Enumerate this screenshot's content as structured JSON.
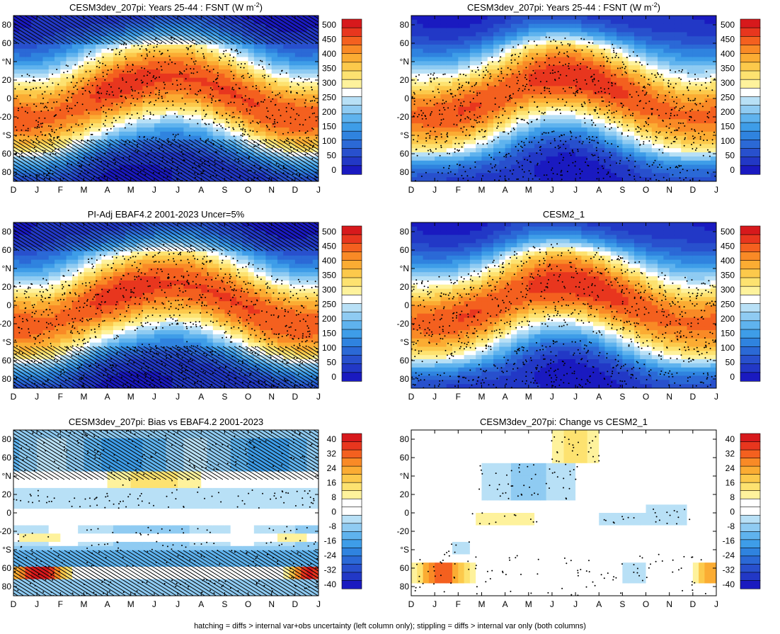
{
  "months": [
    "D",
    "J",
    "F",
    "M",
    "A",
    "M",
    "J",
    "J",
    "A",
    "S",
    "O",
    "N",
    "D",
    "J"
  ],
  "lat_ticks": [
    "80",
    "60",
    "°N",
    "20",
    "0",
    "-20",
    "°S",
    "60",
    "80"
  ],
  "lat_values": [
    80,
    60,
    40,
    20,
    0,
    -20,
    -40,
    -60,
    -80
  ],
  "footer": "hatching = diffs > internal var+obs uncertainty (left column only); stippling = diffs > internal var only (both columns)",
  "colorbars": {
    "fsnt": {
      "labels": [
        "500",
        "450",
        "400",
        "350",
        "300",
        "250",
        "200",
        "150",
        "100",
        "50",
        "0"
      ],
      "colors": [
        "#d7191c",
        "#e8361e",
        "#f4601f",
        "#f98a26",
        "#fbac33",
        "#fcc94b",
        "#fde270",
        "#fef29c",
        "#ffffff",
        "#b8e0f6",
        "#8fcbf2",
        "#5fb3ee",
        "#3e9de8",
        "#2f83df",
        "#2b69d6",
        "#2850cd",
        "#2238c6",
        "#1a1ac0"
      ]
    },
    "diff": {
      "labels": [
        "40",
        "32",
        "24",
        "16",
        "8",
        "0",
        "-8",
        "-16",
        "-24",
        "-32",
        "-40"
      ],
      "colors": [
        "#d7191c",
        "#e8361e",
        "#f4601f",
        "#f98a26",
        "#fbac33",
        "#fcc94b",
        "#fde270",
        "#fef29c",
        "#ffffff",
        "#ffffff",
        "#b8e0f6",
        "#8fcbf2",
        "#5fb3ee",
        "#3e9de8",
        "#2f83df",
        "#2b69d6",
        "#2850cd",
        "#2238c6",
        "#1a1ac0"
      ]
    }
  },
  "panels": [
    {
      "id": "p1",
      "title": "CESM3dev_207pi: Years 25-44 : FSNT (W m",
      "title_sup": "-2",
      "title_end": ")",
      "kind": "fsnt",
      "hatch": true,
      "stipple": "dense"
    },
    {
      "id": "p2",
      "title": "CESM3dev_207pi: Years 25-44 : FSNT (W m",
      "title_sup": "-2",
      "title_end": ")",
      "kind": "fsnt",
      "hatch": false,
      "stipple": "dense"
    },
    {
      "id": "p3",
      "title": "PI-Adj EBAF4.2 2001-2023 Uncer=5%",
      "kind": "fsnt",
      "hatch": true,
      "stipple": "dense"
    },
    {
      "id": "p4",
      "title": "CESM2_1",
      "kind": "fsnt",
      "hatch": false,
      "stipple": "dense"
    },
    {
      "id": "p5",
      "title": "CESM3dev_207pi: Bias vs EBAF4.2 2001-2023",
      "kind": "bias",
      "hatch": true,
      "stipple": "sparse"
    },
    {
      "id": "p6",
      "title": "CESM3dev_207pi: Change vs CESM2_1",
      "kind": "change",
      "hatch": false,
      "stipple": "sparse"
    }
  ],
  "chart_data": [
    {
      "type": "heatmap",
      "title": "CESM3dev_207pi: Years 25-44 : FSNT (W m-2)",
      "x": [
        "D",
        "J",
        "F",
        "M",
        "A",
        "M",
        "J",
        "J",
        "A",
        "S",
        "O",
        "N",
        "D",
        "J"
      ],
      "y_ticks": [
        "80",
        "60",
        "°N",
        "20",
        "0",
        "-20",
        "°S",
        "60",
        "80"
      ],
      "zlim": [
        0,
        500
      ],
      "description_levels": "0 to 500 step ~25"
    },
    {
      "type": "heatmap",
      "title": "CESM3dev_207pi: Years 25-44 : FSNT (W m-2)",
      "x": [
        "D",
        "J",
        "F",
        "M",
        "A",
        "M",
        "J",
        "J",
        "A",
        "S",
        "O",
        "N",
        "D",
        "J"
      ],
      "zlim": [
        0,
        500
      ]
    },
    {
      "type": "heatmap",
      "title": "PI-Adj EBAF4.2 2001-2023 Uncer=5%",
      "x": [
        "D",
        "J",
        "F",
        "M",
        "A",
        "M",
        "J",
        "J",
        "A",
        "S",
        "O",
        "N",
        "D",
        "J"
      ],
      "zlim": [
        0,
        500
      ]
    },
    {
      "type": "heatmap",
      "title": "CESM2_1",
      "x": [
        "D",
        "J",
        "F",
        "M",
        "A",
        "M",
        "J",
        "J",
        "A",
        "S",
        "O",
        "N",
        "D",
        "J"
      ],
      "zlim": [
        0,
        500
      ]
    },
    {
      "type": "heatmap",
      "title": "CESM3dev_207pi: Bias vs EBAF4.2 2001-2023",
      "x": [
        "D",
        "J",
        "F",
        "M",
        "A",
        "M",
        "J",
        "J",
        "A",
        "S",
        "O",
        "N",
        "D",
        "J"
      ],
      "zlim": [
        -40,
        40
      ]
    },
    {
      "type": "heatmap",
      "title": "CESM3dev_207pi: Change vs CESM2_1",
      "x": [
        "D",
        "J",
        "F",
        "M",
        "A",
        "M",
        "J",
        "J",
        "A",
        "S",
        "O",
        "N",
        "D",
        "J"
      ],
      "zlim": [
        -40,
        40
      ]
    }
  ]
}
